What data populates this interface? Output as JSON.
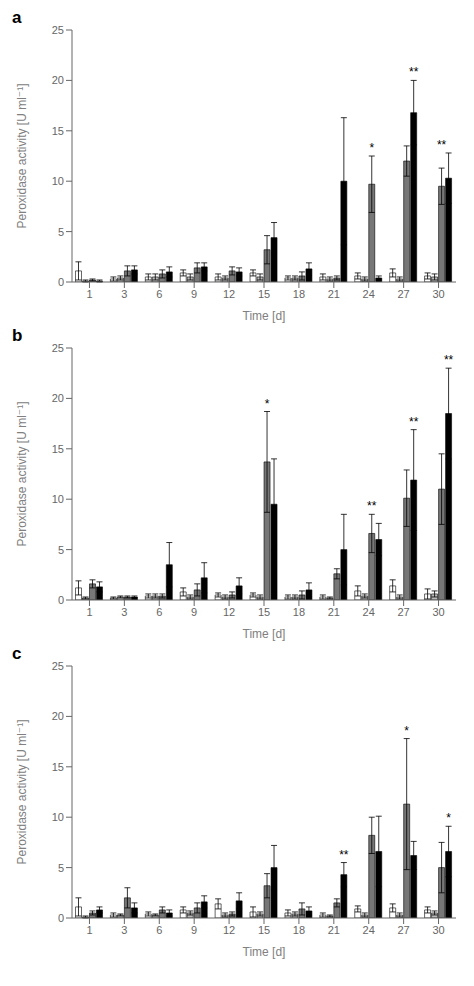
{
  "chart_data": [
    {
      "type": "bar",
      "title": "a",
      "xlabel": "Time [d]",
      "ylabel": "Peroxidase activity [U ml⁻¹]",
      "categories": [
        "1",
        "3",
        "6",
        "9",
        "12",
        "15",
        "18",
        "21",
        "24",
        "27",
        "30"
      ],
      "series": [
        {
          "color": "#ffffff",
          "values": [
            1.1,
            0.3,
            0.5,
            0.9,
            0.5,
            0.9,
            0.4,
            0.5,
            0.6,
            0.9,
            0.6
          ],
          "errors": [
            0.9,
            0.2,
            0.3,
            0.3,
            0.3,
            0.3,
            0.2,
            0.3,
            0.3,
            0.4,
            0.3
          ]
        },
        {
          "color": "#bbbbbb",
          "values": [
            0.1,
            0.4,
            0.5,
            0.5,
            0.4,
            0.5,
            0.4,
            0.3,
            0.3,
            0.3,
            0.5
          ],
          "errors": [
            0.1,
            0.2,
            0.3,
            0.3,
            0.2,
            0.3,
            0.2,
            0.2,
            0.2,
            0.2,
            0.3
          ]
        },
        {
          "color": "#777777",
          "values": [
            0.2,
            1.1,
            0.8,
            1.4,
            1.1,
            3.2,
            0.6,
            0.4,
            9.7,
            12.0,
            9.5
          ],
          "errors": [
            0.1,
            0.5,
            0.4,
            0.5,
            0.4,
            1.4,
            0.4,
            0.2,
            2.8,
            1.5,
            1.8
          ]
        },
        {
          "color": "#000000",
          "values": [
            0.1,
            1.2,
            1.0,
            1.5,
            1.0,
            4.4,
            1.3,
            10.0,
            0.4,
            16.8,
            10.3
          ],
          "errors": [
            0.1,
            0.4,
            0.5,
            0.4,
            0.4,
            1.5,
            0.6,
            6.3,
            0.2,
            3.2,
            2.5
          ]
        }
      ],
      "annotations": [
        {
          "category": "24",
          "series": 3,
          "text": "*"
        },
        {
          "category": "27",
          "series": 4,
          "text": "**"
        },
        {
          "category": "30",
          "series": 3,
          "text": "**"
        }
      ],
      "ylim": [
        0,
        25
      ],
      "yticks": [
        0,
        5,
        10,
        15,
        20,
        25
      ],
      "grid": false
    },
    {
      "type": "bar",
      "title": "b",
      "xlabel": "Time [d]",
      "ylabel": "Peroxidase activity [U ml⁻¹]",
      "categories": [
        "1",
        "3",
        "6",
        "9",
        "12",
        "15",
        "18",
        "21",
        "24",
        "27",
        "30"
      ],
      "series": [
        {
          "color": "#ffffff",
          "values": [
            1.2,
            0.2,
            0.4,
            0.8,
            0.5,
            0.5,
            0.3,
            0.3,
            0.9,
            1.4,
            0.6
          ],
          "errors": [
            0.7,
            0.1,
            0.2,
            0.4,
            0.2,
            0.2,
            0.2,
            0.2,
            0.5,
            0.6,
            0.5
          ]
        },
        {
          "color": "#bbbbbb",
          "values": [
            0.2,
            0.3,
            0.4,
            0.3,
            0.3,
            0.3,
            0.3,
            0.2,
            0.4,
            0.3,
            0.6
          ],
          "errors": [
            0.1,
            0.1,
            0.2,
            0.2,
            0.2,
            0.2,
            0.2,
            0.1,
            0.2,
            0.2,
            0.3
          ]
        },
        {
          "color": "#777777",
          "values": [
            1.6,
            0.3,
            0.4,
            1.0,
            0.5,
            13.7,
            0.5,
            2.6,
            6.6,
            10.1,
            11.0
          ],
          "errors": [
            0.4,
            0.1,
            0.2,
            0.6,
            0.3,
            5.0,
            0.4,
            0.5,
            1.9,
            2.8,
            3.5
          ]
        },
        {
          "color": "#000000",
          "values": [
            1.3,
            0.3,
            3.5,
            2.2,
            1.4,
            9.5,
            1.0,
            5.0,
            6.0,
            11.9,
            18.5
          ],
          "errors": [
            0.5,
            0.1,
            2.2,
            1.5,
            0.8,
            4.5,
            0.7,
            3.5,
            1.6,
            5.0,
            4.5
          ]
        }
      ],
      "annotations": [
        {
          "category": "15",
          "series": 3,
          "text": "*"
        },
        {
          "category": "24",
          "series": 3,
          "text": "**"
        },
        {
          "category": "27",
          "series": 4,
          "text": "**"
        },
        {
          "category": "30",
          "series": 4,
          "text": "**"
        }
      ],
      "ylim": [
        0,
        25
      ],
      "yticks": [
        0,
        5,
        10,
        15,
        20,
        25
      ],
      "grid": false
    },
    {
      "type": "bar",
      "title": "c",
      "xlabel": "Time [d]",
      "ylabel": "Peroxidase activity [U ml⁻¹]",
      "categories": [
        "1",
        "3",
        "6",
        "9",
        "12",
        "15",
        "18",
        "21",
        "24",
        "27",
        "30"
      ],
      "series": [
        {
          "color": "#ffffff",
          "values": [
            1.1,
            0.3,
            0.4,
            0.8,
            1.4,
            0.6,
            0.5,
            0.3,
            0.9,
            1.0,
            0.8
          ],
          "errors": [
            0.9,
            0.2,
            0.2,
            0.3,
            0.5,
            0.5,
            0.3,
            0.2,
            0.3,
            0.4,
            0.3
          ]
        },
        {
          "color": "#bbbbbb",
          "values": [
            0.1,
            0.3,
            0.3,
            0.5,
            0.3,
            0.4,
            0.4,
            0.2,
            0.3,
            0.3,
            0.5
          ],
          "errors": [
            0.1,
            0.1,
            0.1,
            0.2,
            0.2,
            0.2,
            0.2,
            0.1,
            0.2,
            0.2,
            0.2
          ]
        },
        {
          "color": "#777777",
          "values": [
            0.5,
            2.0,
            0.8,
            1.0,
            0.4,
            3.2,
            0.9,
            1.5,
            8.2,
            11.3,
            5.0
          ],
          "errors": [
            0.2,
            1.0,
            0.3,
            0.5,
            0.2,
            1.2,
            0.6,
            0.4,
            1.8,
            6.5,
            2.5
          ]
        },
        {
          "color": "#000000",
          "values": [
            0.8,
            1.0,
            0.5,
            1.6,
            1.7,
            5.0,
            0.7,
            4.3,
            6.6,
            6.2,
            6.6
          ],
          "errors": [
            0.3,
            0.5,
            0.3,
            0.6,
            0.8,
            2.2,
            0.4,
            1.2,
            3.5,
            1.4,
            2.5
          ]
        }
      ],
      "annotations": [
        {
          "category": "21",
          "series": 4,
          "text": "**"
        },
        {
          "category": "27",
          "series": 3,
          "text": "*"
        },
        {
          "category": "30",
          "series": 4,
          "text": "*"
        }
      ],
      "ylim": [
        0,
        25
      ],
      "yticks": [
        0,
        5,
        10,
        15,
        20,
        25
      ],
      "grid": false
    }
  ]
}
